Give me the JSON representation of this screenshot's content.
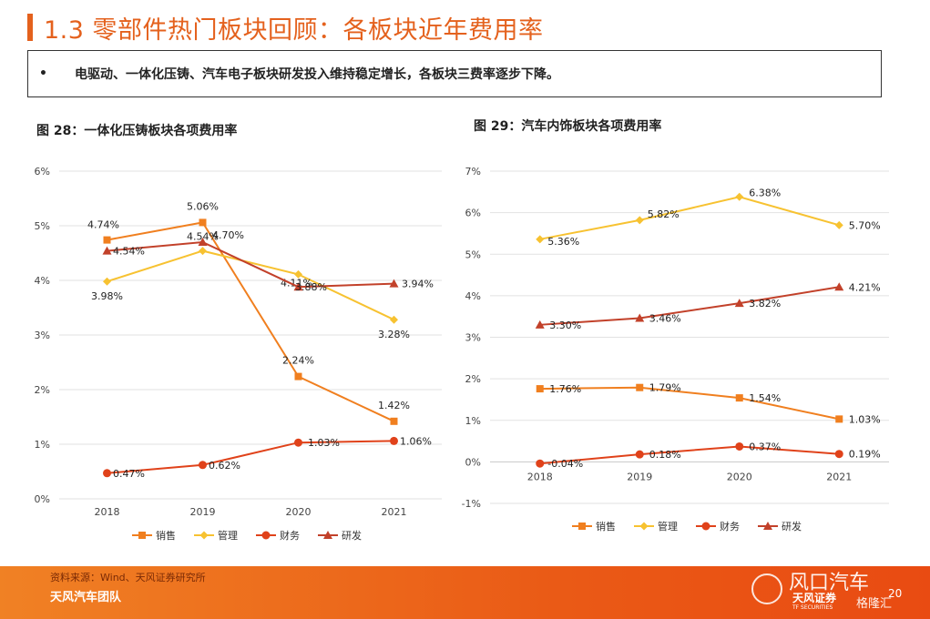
{
  "page": {
    "title": "1.3 零部件热门板块回顾：各板块近年费用率",
    "bullet": "•",
    "summary": "电驱动、一体化压铸、汽车电子板块研发投入维持稳定增长，各板块三费率逐步下降。"
  },
  "figures": [
    {
      "title": "图 28：一体化压铸板块各项费用率"
    },
    {
      "title": "图 29：汽车内饰板块各项费用率"
    }
  ],
  "footer": {
    "source": "资料来源：Wind、天风证券研究所",
    "team": "天风汽车团队",
    "page_number": "20",
    "watermark": "风口汽车",
    "watermark_sub": "格隆汇",
    "logo": "天风证券",
    "logo_sub": "TF SECURITIES"
  },
  "colors": {
    "accent": "#e4611d",
    "sales": "#f07f1f",
    "admin": "#f7c231",
    "finance": "#e0421a",
    "rd": "#c2412a"
  },
  "chart_data": [
    {
      "type": "line",
      "categories": [
        "2018",
        "2019",
        "2020",
        "2021"
      ],
      "ylim": [
        0,
        6
      ],
      "yticks": [
        0,
        1,
        2,
        3,
        4,
        5,
        6
      ],
      "yticklabels": [
        "0%",
        "1%",
        "2%",
        "3%",
        "4%",
        "5%",
        "6%"
      ],
      "grid": true,
      "legend": "bottom",
      "series": [
        {
          "name": "销售",
          "marker": "square",
          "color": "#f07f1f",
          "values": [
            4.74,
            5.06,
            2.24,
            1.42
          ],
          "labels": [
            "4.74%",
            "5.06%",
            "2.24%",
            "1.42%"
          ]
        },
        {
          "name": "管理",
          "marker": "diamond",
          "color": "#f7c231",
          "values": [
            3.98,
            4.54,
            4.11,
            3.28
          ],
          "labels": [
            "3.98%",
            "4.54%",
            "4.11%",
            "3.28%"
          ]
        },
        {
          "name": "财务",
          "marker": "circle",
          "color": "#e0421a",
          "values": [
            0.47,
            0.62,
            1.03,
            1.06
          ],
          "labels": [
            "0.47%",
            "0.62%",
            "1.03%",
            "1.06%"
          ]
        },
        {
          "name": "研发",
          "marker": "triangle",
          "color": "#c2412a",
          "values": [
            4.54,
            4.7,
            3.88,
            3.94
          ],
          "labels": [
            "4.54%",
            "4.70%",
            "3.88%",
            "3.94%"
          ]
        }
      ]
    },
    {
      "type": "line",
      "categories": [
        "2018",
        "2019",
        "2020",
        "2021"
      ],
      "ylim": [
        -1,
        7
      ],
      "yticks": [
        -1,
        0,
        1,
        2,
        3,
        4,
        5,
        6,
        7
      ],
      "yticklabels": [
        "-1%",
        "0%",
        "1%",
        "2%",
        "3%",
        "4%",
        "5%",
        "6%",
        "7%"
      ],
      "grid": true,
      "legend": "bottom",
      "series": [
        {
          "name": "销售",
          "marker": "square",
          "color": "#f07f1f",
          "values": [
            1.76,
            1.79,
            1.54,
            1.03
          ],
          "labels": [
            "1.76%",
            "1.79%",
            "1.54%",
            "1.03%"
          ]
        },
        {
          "name": "管理",
          "marker": "diamond",
          "color": "#f7c231",
          "values": [
            5.36,
            5.82,
            6.38,
            5.7
          ],
          "labels": [
            "5.36%",
            "5.82%",
            "6.38%",
            "5.70%"
          ]
        },
        {
          "name": "财务",
          "marker": "circle",
          "color": "#e0421a",
          "values": [
            -0.04,
            0.18,
            0.37,
            0.19
          ],
          "labels": [
            "-0.04%",
            "0.18%",
            "0.37%",
            "0.19%"
          ]
        },
        {
          "name": "研发",
          "marker": "triangle",
          "color": "#c2412a",
          "values": [
            3.3,
            3.46,
            3.82,
            4.21
          ],
          "labels": [
            "3.30%",
            "3.46%",
            "3.82%",
            "4.21%"
          ]
        }
      ]
    }
  ]
}
